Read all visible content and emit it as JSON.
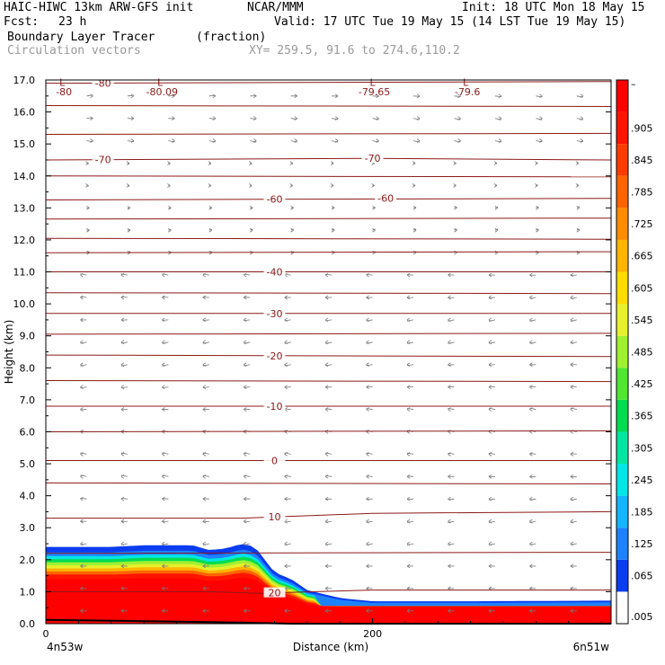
{
  "header": {
    "model": "HAIC-HIWC 13km ARW-GFS init",
    "org": "NCAR/MMM",
    "init": "Init: 18 UTC Mon 18 May 15",
    "fcst_label": "Fcst:",
    "fcst_value": "23 h",
    "valid": "Valid: 17 UTC Tue 19 May 15 (14 LST Tue 19 May 15)",
    "field": "Boundary Layer Tracer",
    "field_units": "(fraction)",
    "overlay": "Circulation vectors",
    "xy": "XY= 259.5, 91.6 to 274.6,110.2"
  },
  "chart_data": {
    "type": "heatmap",
    "xlabel": "Distance (km)",
    "ylabel": "Height (km)",
    "xlim": [
      0,
      346
    ],
    "ylim": [
      0,
      17
    ],
    "x_ticks": [
      "0",
      "200"
    ],
    "y_ticks": [
      "0.0",
      "1.0",
      "2.0",
      "3.0",
      "4.0",
      "5.0",
      "6.0",
      "7.0",
      "8.0",
      "9.0",
      "10.0",
      "11.0",
      "12.0",
      "13.0",
      "14.0",
      "15.0",
      "16.0",
      "17.0"
    ],
    "x_end_labels": {
      "left": "4n53w",
      "right": "6n51w"
    },
    "colorbar": {
      "levels": [
        ".005",
        ".065",
        ".125",
        ".185",
        ".245",
        ".305",
        ".365",
        ".425",
        ".485",
        ".545",
        ".605",
        ".665",
        ".725",
        ".785",
        ".845",
        ".905",
        "–"
      ],
      "colors": [
        "#ffffff",
        "#0a3cf0",
        "#1e82ff",
        "#14b4ff",
        "#00e6e6",
        "#00e6a0",
        "#00dc50",
        "#50e632",
        "#a0f032",
        "#e6f02d",
        "#ffdc00",
        "#ffb400",
        "#ff8c00",
        "#ff6400",
        "#ff3c00",
        "#ff1400",
        "#ff0000"
      ]
    },
    "tracer_top_km": [
      [
        0,
        2.4
      ],
      [
        40,
        2.4
      ],
      [
        60,
        2.45
      ],
      [
        90,
        2.45
      ],
      [
        100,
        2.3
      ],
      [
        110,
        2.35
      ],
      [
        120,
        2.5
      ],
      [
        128,
        2.4
      ],
      [
        140,
        1.6
      ],
      [
        150,
        1.4
      ],
      [
        160,
        1.05
      ],
      [
        180,
        0.8
      ],
      [
        200,
        0.7
      ],
      [
        260,
        0.7
      ],
      [
        346,
        0.72
      ]
    ],
    "temperature_contours_C": [
      {
        "label": "-80",
        "points": [
          [
            0,
            16.9
          ],
          [
            346,
            16.95
          ]
        ]
      },
      {
        "label": "-70",
        "points": [
          [
            0,
            14.5
          ],
          [
            200,
            14.55
          ],
          [
            346,
            14.5
          ]
        ]
      },
      {
        "label": "-60",
        "points": [
          [
            0,
            13.25
          ],
          [
            346,
            13.3
          ]
        ]
      },
      {
        "label": "-40",
        "points": [
          [
            0,
            11.0
          ],
          [
            346,
            11.0
          ]
        ]
      },
      {
        "label": "-30",
        "points": [
          [
            0,
            9.7
          ],
          [
            346,
            9.7
          ]
        ]
      },
      {
        "label": "-20",
        "points": [
          [
            0,
            8.4
          ],
          [
            346,
            8.35
          ]
        ]
      },
      {
        "label": "-10",
        "points": [
          [
            0,
            6.8
          ],
          [
            346,
            6.8
          ]
        ]
      },
      {
        "label": "0",
        "points": [
          [
            0,
            5.1
          ],
          [
            346,
            5.1
          ]
        ]
      },
      {
        "label": "10",
        "points": [
          [
            0,
            3.3
          ],
          [
            120,
            3.3
          ],
          [
            200,
            3.45
          ],
          [
            346,
            3.5
          ]
        ]
      },
      {
        "label": "20",
        "points": [
          [
            0,
            1.0
          ],
          [
            100,
            1.0
          ],
          [
            130,
            0.95
          ],
          [
            200,
            1.05
          ],
          [
            346,
            1.05
          ]
        ]
      }
    ],
    "extra_isotherm_heights_km": [
      16.2,
      15.3,
      14.0,
      12.65,
      12.05,
      11.6,
      10.35,
      9.05,
      7.6,
      6.0,
      4.4,
      2.2
    ],
    "extra_isotherm_labels": [
      "-80",
      "-70",
      "-60"
    ],
    "minima_labels": [
      {
        "label": "L",
        "value": "-80",
        "x": 10
      },
      {
        "label": "L",
        "value": "-80.09",
        "x": 70
      },
      {
        "label": "L",
        "value": "-79.65",
        "x": 200
      },
      {
        "label": "L",
        "value": "-79.6",
        "x": 257
      }
    ],
    "temperature_labels_repeated": [
      {
        "value": "-70",
        "x": 200,
        "y": 14.55
      },
      {
        "value": "-60",
        "x": 208,
        "y": 13.3
      }
    ],
    "vectors": {
      "upper_direction": "east",
      "mid_lower_direction": "west"
    }
  }
}
